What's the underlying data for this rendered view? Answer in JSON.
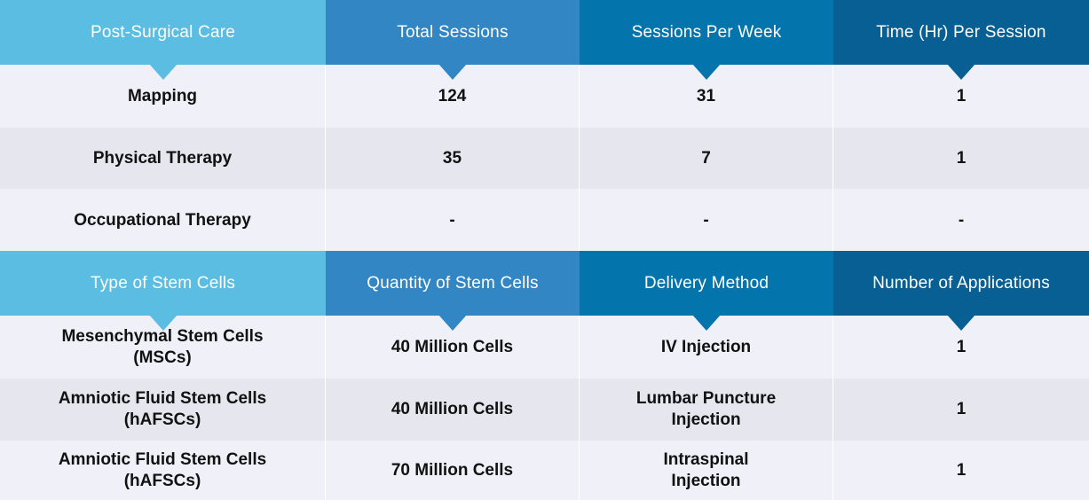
{
  "table1": {
    "headers": [
      "Post-Surgical Care",
      "Total Sessions",
      "Sessions Per Week",
      "Time (Hr) Per Session"
    ],
    "rows": [
      [
        "Mapping",
        "124",
        "31",
        "1"
      ],
      [
        "Physical Therapy",
        "35",
        "7",
        "1"
      ],
      [
        "Occupational Therapy",
        "-",
        "-",
        "-"
      ]
    ]
  },
  "table2": {
    "headers": [
      "Type of Stem Cells",
      "Quantity of Stem Cells",
      "Delivery Method",
      "Number of Applications"
    ],
    "rows": [
      [
        "Mesenchymal Stem Cells\n(MSCs)",
        "40 Million Cells",
        "IV Injection",
        "1"
      ],
      [
        "Amniotic Fluid Stem Cells\n(hAFSCs)",
        "40 Million Cells",
        "Lumbar Puncture\nInjection",
        "1"
      ],
      [
        "Amniotic Fluid Stem Cells\n(hAFSCs)",
        "70 Million Cells",
        "Intraspinal\nInjection",
        "1"
      ]
    ]
  },
  "colors": {
    "header_col1": "#5bbde2",
    "header_col2": "#3386c4",
    "header_col3": "#0474ad",
    "header_col4": "#085f94",
    "row_light": "#f0f0f8",
    "row_dark": "#e6e6ee"
  }
}
